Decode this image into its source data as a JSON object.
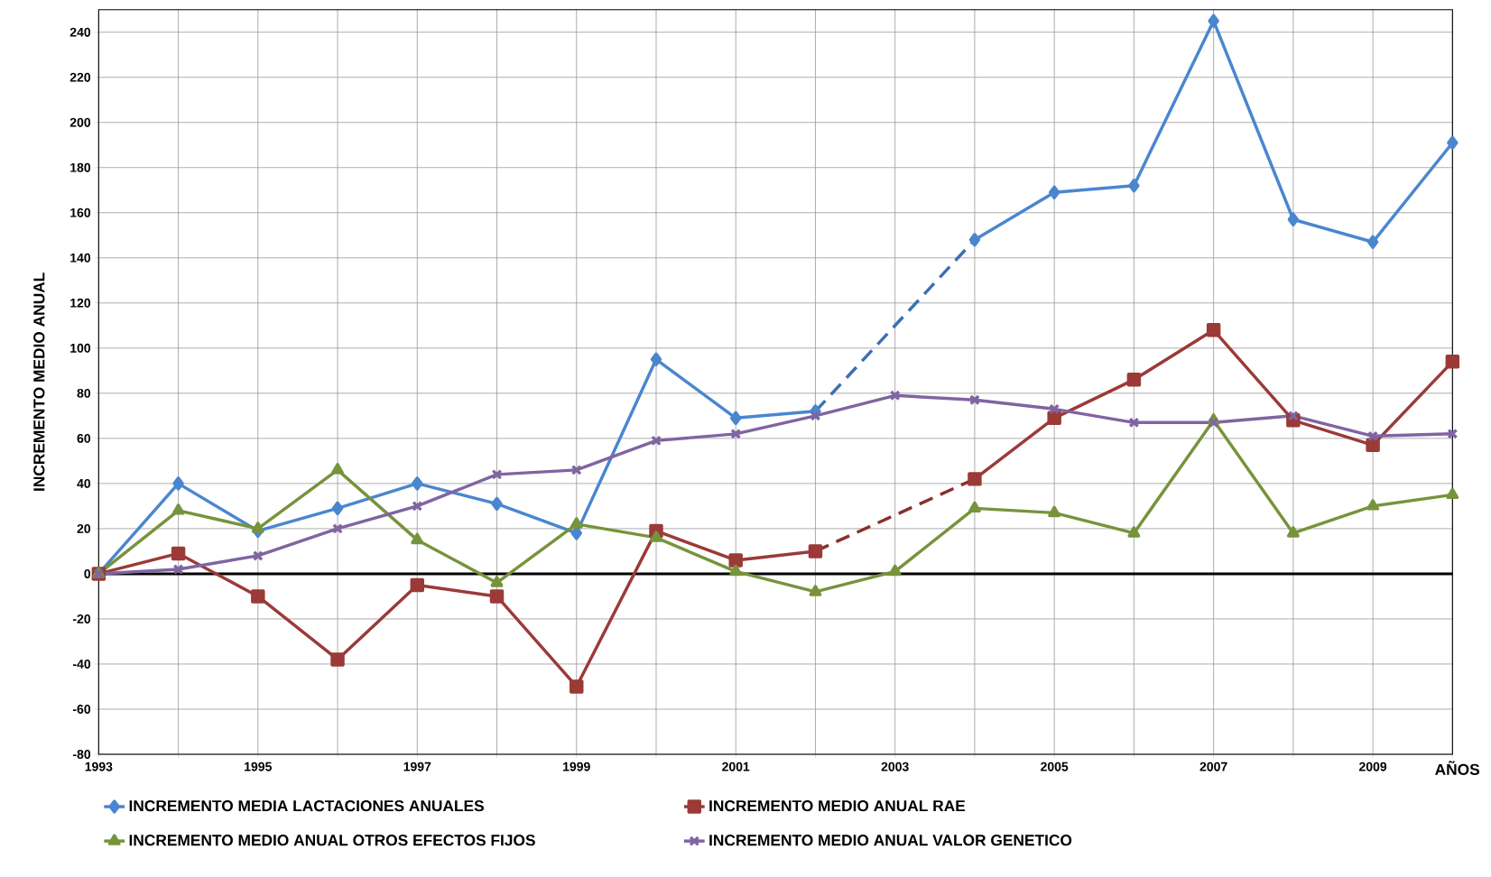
{
  "chart_data": {
    "type": "line",
    "ylabel": "INCREMENTO MEDIO ANUAL",
    "xlabel": "AÑOS",
    "x": [
      1993,
      1994,
      1995,
      1996,
      1997,
      1998,
      1999,
      2000,
      2001,
      2002,
      2003,
      2004,
      2005,
      2006,
      2007,
      2008,
      2009,
      2010
    ],
    "xlim": [
      1993,
      2010
    ],
    "xticks": [
      1993,
      {
        "value": 1994,
        "label": null
      },
      1995,
      {
        "value": 1996,
        "label": null
      },
      1997,
      {
        "value": 1998,
        "label": null
      },
      1999,
      {
        "value": 2000,
        "label": null
      },
      2001,
      {
        "value": 2002,
        "label": null
      },
      2003,
      {
        "value": 2004,
        "label": null
      },
      2005,
      {
        "value": 2006,
        "label": null
      },
      2007,
      {
        "value": 2008,
        "label": null
      },
      2009,
      {
        "value": 2010,
        "label": null
      }
    ],
    "ylim": [
      -80,
      250
    ],
    "yticks": [
      -80,
      -60,
      -40,
      -20,
      0,
      20,
      40,
      60,
      80,
      100,
      120,
      140,
      160,
      180,
      200,
      220,
      240
    ],
    "grid": true,
    "legend": "bottom",
    "ref_lines": [
      {
        "axis": "y",
        "value": 0,
        "color": "#000000"
      }
    ],
    "series": [
      {
        "name": "INCREMENTO MEDIA LACTACIONES ANUALES",
        "color": "#4a86d0",
        "marker": "diamond",
        "line_style": "solid",
        "values": [
          0,
          40,
          19,
          29,
          40,
          31,
          18,
          95,
          69,
          72,
          null,
          148,
          169,
          172,
          245,
          157,
          147,
          191
        ]
      },
      {
        "name": "INCREMENTO MEDIO ANUAL RAE",
        "color": "#9b3a37",
        "marker": "square",
        "line_style": "solid",
        "values": [
          0,
          9,
          -10,
          -38,
          -5,
          -10,
          -50,
          19,
          6,
          10,
          null,
          42,
          69,
          86,
          108,
          68,
          57,
          94
        ]
      },
      {
        "name": "INCREMENTO MEDIO ANUAL OTROS EFECTOS FIJOS",
        "color": "#77933c",
        "marker": "triangle",
        "line_style": "solid",
        "values": [
          0,
          28,
          20,
          46,
          15,
          -4,
          22,
          16,
          1,
          -8,
          1,
          29,
          27,
          18,
          68,
          18,
          30,
          35
        ]
      },
      {
        "name": "INCREMENTO MEDIO ANUAL VALOR GENETICO",
        "color": "#8064a2",
        "marker": "cross",
        "line_style": "solid",
        "values": [
          0,
          2,
          8,
          20,
          30,
          44,
          46,
          59,
          62,
          70,
          79,
          77,
          73,
          67,
          67,
          70,
          61,
          62
        ]
      },
      {
        "color": "#3c70b4",
        "marker": "none",
        "line_style": "dashed",
        "values": [
          null,
          null,
          null,
          null,
          null,
          null,
          null,
          null,
          null,
          72,
          null,
          148,
          null,
          null,
          null,
          null,
          null,
          null
        ]
      },
      {
        "color": "#8a302e",
        "marker": "none",
        "line_style": "dashed",
        "values": [
          null,
          null,
          null,
          null,
          null,
          null,
          null,
          null,
          null,
          10,
          null,
          42,
          null,
          null,
          null,
          null,
          null,
          null
        ]
      }
    ]
  }
}
